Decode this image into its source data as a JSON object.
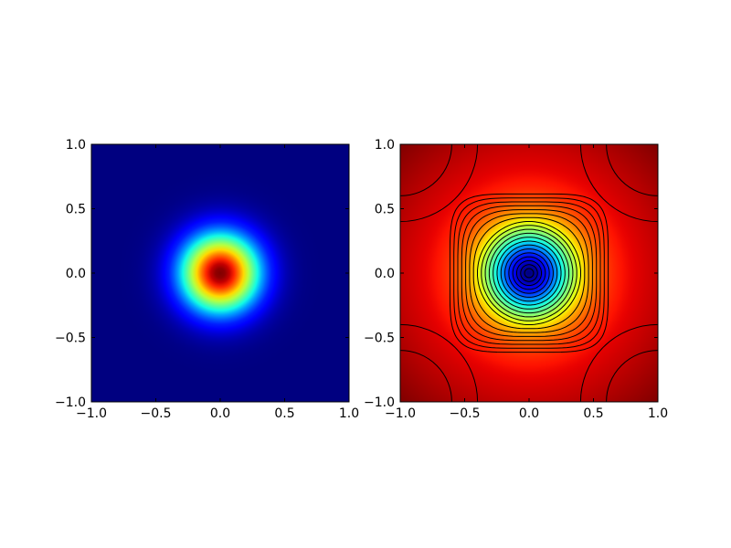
{
  "chart_data": [
    {
      "type": "image",
      "colormap": "jet",
      "xlim": [
        -1,
        1
      ],
      "ylim": [
        -1,
        1
      ],
      "xticks": [
        {
          "value": -1,
          "label": "−1.0"
        },
        {
          "value": -0.5,
          "label": "−0.5"
        },
        {
          "value": 0,
          "label": "0.0"
        },
        {
          "value": 0.5,
          "label": "0.5"
        },
        {
          "value": 1,
          "label": "1.0"
        }
      ],
      "yticks": [
        {
          "value": -1,
          "label": "−1.0"
        },
        {
          "value": -0.5,
          "label": "−0.5"
        },
        {
          "value": 0,
          "label": "0.0"
        },
        {
          "value": 0.5,
          "label": "0.5"
        },
        {
          "value": 1,
          "label": "1.0"
        }
      ]
    },
    {
      "type": "contour",
      "colormap": "jet",
      "xlim": [
        -1,
        1
      ],
      "ylim": [
        -1,
        1
      ],
      "xticks": [
        {
          "value": -1,
          "label": "−1.0"
        },
        {
          "value": -0.5,
          "label": "−0.5"
        },
        {
          "value": 0,
          "label": "0.0"
        },
        {
          "value": 0.5,
          "label": "0.5"
        },
        {
          "value": 1,
          "label": "1.0"
        }
      ],
      "yticks": [
        {
          "value": -1,
          "label": "−1.0"
        },
        {
          "value": -0.5,
          "label": "−0.5"
        },
        {
          "value": 0,
          "label": "0.0"
        },
        {
          "value": 0.5,
          "label": "0.5"
        },
        {
          "value": 1,
          "label": "1.0"
        }
      ]
    }
  ]
}
